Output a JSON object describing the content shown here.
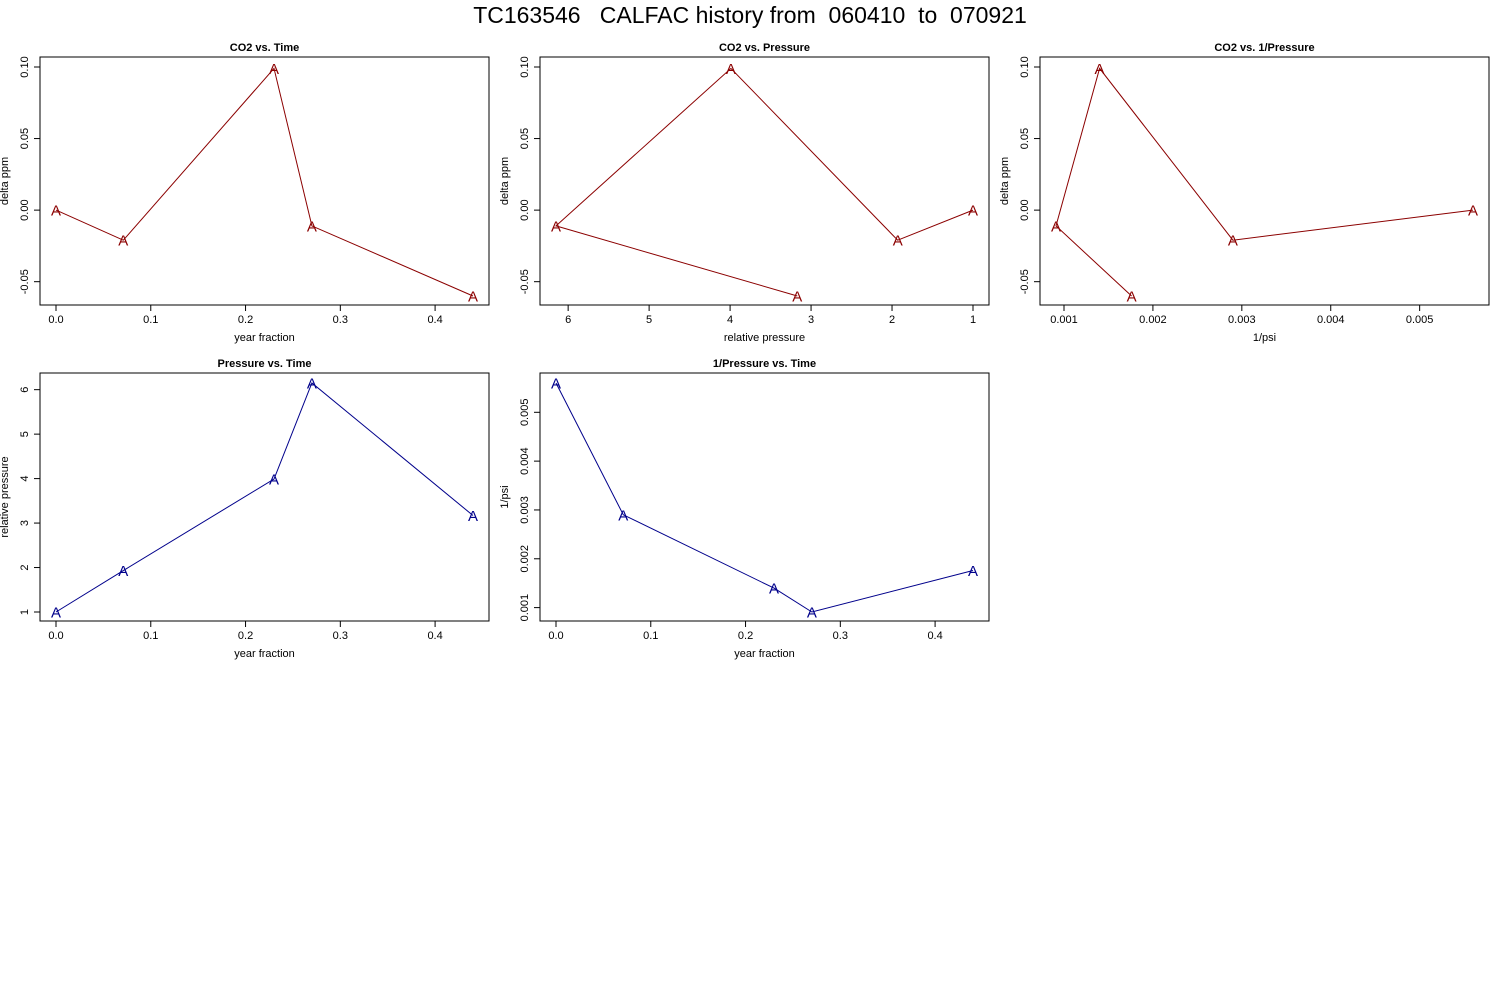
{
  "page_title": "TC163546   CALFAC history from  060410  to  070921",
  "colors": {
    "co2_series": "#8b0000",
    "pressure_series": "#00008b",
    "axis": "#000000"
  },
  "point_label": "A",
  "chart_data": [
    {
      "id": "co2-vs-time",
      "type": "line",
      "title": "CO2 vs. Time",
      "xlabel": "year fraction",
      "ylabel": "delta ppm",
      "xlim": [
        0,
        0.44
      ],
      "ylim": [
        -0.06,
        0.1
      ],
      "xticks": [
        0,
        0.1,
        0.2,
        0.3,
        0.4
      ],
      "xtick_labels": [
        "0.0",
        "0.1",
        "0.2",
        "0.3",
        "0.4"
      ],
      "yticks": [
        -0.05,
        0,
        0.05,
        0.1
      ],
      "ytick_labels": [
        "-0.05",
        "0.00",
        "0.05",
        "0.10"
      ],
      "x_reversed": false,
      "color_key": "co2_series",
      "series": [
        {
          "name": "A",
          "x": [
            0,
            0.071,
            0.23,
            0.27,
            0.44
          ],
          "y": [
            0,
            -0.021,
            0.099,
            -0.011,
            -0.06
          ]
        }
      ]
    },
    {
      "id": "co2-vs-pressure",
      "type": "line",
      "title": "CO2 vs. Pressure",
      "xlabel": "relative pressure",
      "ylabel": "delta ppm",
      "xlim": [
        6.15,
        1
      ],
      "ylim": [
        -0.06,
        0.1
      ],
      "xticks": [
        6,
        5,
        4,
        3,
        2,
        1
      ],
      "xtick_labels": [
        "6",
        "5",
        "4",
        "3",
        "2",
        "1"
      ],
      "yticks": [
        -0.05,
        0,
        0.05,
        0.1
      ],
      "ytick_labels": [
        "-0.05",
        "0.00",
        "0.05",
        "0.10"
      ],
      "x_reversed": true,
      "color_key": "co2_series",
      "series": [
        {
          "name": "A",
          "x": [
            1,
            1.93,
            3.99,
            6.15,
            3.17
          ],
          "y": [
            0,
            -0.021,
            0.099,
            -0.011,
            -0.06
          ]
        }
      ]
    },
    {
      "id": "co2-vs-inv-pressure",
      "type": "line",
      "title": "CO2 vs. 1/Pressure",
      "xlabel": "1/psi",
      "ylabel": "delta ppm",
      "xlim": [
        0.00091,
        0.0056
      ],
      "ylim": [
        -0.06,
        0.1
      ],
      "xticks": [
        0.001,
        0.002,
        0.003,
        0.004,
        0.005
      ],
      "xtick_labels": [
        "0.001",
        "0.002",
        "0.003",
        "0.004",
        "0.005"
      ],
      "yticks": [
        -0.05,
        0,
        0.05,
        0.1
      ],
      "ytick_labels": [
        "-0.05",
        "0.00",
        "0.05",
        "0.10"
      ],
      "x_reversed": false,
      "color_key": "co2_series",
      "series": [
        {
          "name": "A",
          "x": [
            0.0056,
            0.0029,
            0.0014,
            0.00091,
            0.00176
          ],
          "y": [
            0,
            -0.021,
            0.099,
            -0.011,
            -0.06
          ]
        }
      ]
    },
    {
      "id": "pressure-vs-time",
      "type": "line",
      "title": "Pressure vs. Time",
      "xlabel": "year fraction",
      "ylabel": "relative pressure",
      "xlim": [
        0,
        0.44
      ],
      "ylim": [
        1,
        6.15
      ],
      "xticks": [
        0,
        0.1,
        0.2,
        0.3,
        0.4
      ],
      "xtick_labels": [
        "0.0",
        "0.1",
        "0.2",
        "0.3",
        "0.4"
      ],
      "yticks": [
        1,
        2,
        3,
        4,
        5,
        6
      ],
      "ytick_labels": [
        "1",
        "2",
        "3",
        "4",
        "5",
        "6"
      ],
      "x_reversed": false,
      "color_key": "pressure_series",
      "series": [
        {
          "name": "A",
          "x": [
            0,
            0.071,
            0.23,
            0.27,
            0.44
          ],
          "y": [
            1,
            1.93,
            3.99,
            6.15,
            3.17
          ]
        }
      ]
    },
    {
      "id": "inv-pressure-vs-time",
      "type": "line",
      "title": "1/Pressure vs. Time",
      "xlabel": "year fraction",
      "ylabel": "1/psi",
      "xlim": [
        0,
        0.44
      ],
      "ylim": [
        0.00091,
        0.0056
      ],
      "xticks": [
        0,
        0.1,
        0.2,
        0.3,
        0.4
      ],
      "xtick_labels": [
        "0.0",
        "0.1",
        "0.2",
        "0.3",
        "0.4"
      ],
      "yticks": [
        0.001,
        0.002,
        0.003,
        0.004,
        0.005
      ],
      "ytick_labels": [
        "0.001",
        "0.002",
        "0.003",
        "0.004",
        "0.005"
      ],
      "x_reversed": false,
      "color_key": "pressure_series",
      "series": [
        {
          "name": "A",
          "x": [
            0,
            0.071,
            0.23,
            0.27,
            0.44
          ],
          "y": [
            0.0056,
            0.0029,
            0.0014,
            0.00091,
            0.00176
          ]
        }
      ]
    }
  ]
}
